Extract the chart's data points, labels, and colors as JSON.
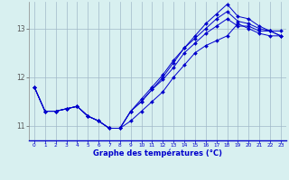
{
  "xlabel": "Graphe des températures (°C)",
  "background_color": "#d8f0f0",
  "line_color": "#0000cc",
  "grid_color": "#a0b8c8",
  "xlim": [
    -0.5,
    23.5
  ],
  "ylim": [
    10.7,
    13.55
  ],
  "yticks": [
    11,
    12,
    13
  ],
  "xticks": [
    0,
    1,
    2,
    3,
    4,
    5,
    6,
    7,
    8,
    9,
    10,
    11,
    12,
    13,
    14,
    15,
    16,
    17,
    18,
    19,
    20,
    21,
    22,
    23
  ],
  "series": [
    [
      11.8,
      11.3,
      11.3,
      11.35,
      11.4,
      11.2,
      11.1,
      10.95,
      10.95,
      11.1,
      11.3,
      11.5,
      11.7,
      12.0,
      12.25,
      12.5,
      12.65,
      12.75,
      12.85,
      13.1,
      13.0,
      12.9,
      12.85,
      12.85
    ],
    [
      11.8,
      11.3,
      11.3,
      11.35,
      11.4,
      11.2,
      11.1,
      10.95,
      10.95,
      11.3,
      11.5,
      11.75,
      11.95,
      12.2,
      12.5,
      12.7,
      12.9,
      13.05,
      13.2,
      13.05,
      13.05,
      12.95,
      12.95,
      12.95
    ],
    [
      11.8,
      11.3,
      11.3,
      11.35,
      11.4,
      11.2,
      11.1,
      10.95,
      10.95,
      11.3,
      11.5,
      11.75,
      12.0,
      12.3,
      12.6,
      12.8,
      13.0,
      13.2,
      13.35,
      13.15,
      13.1,
      13.0,
      12.95,
      12.85
    ],
    [
      11.8,
      11.3,
      11.3,
      11.35,
      11.4,
      11.2,
      11.1,
      10.95,
      10.95,
      11.3,
      11.55,
      11.8,
      12.05,
      12.35,
      12.6,
      12.85,
      13.1,
      13.3,
      13.5,
      13.25,
      13.2,
      13.05,
      12.95,
      12.85
    ]
  ]
}
